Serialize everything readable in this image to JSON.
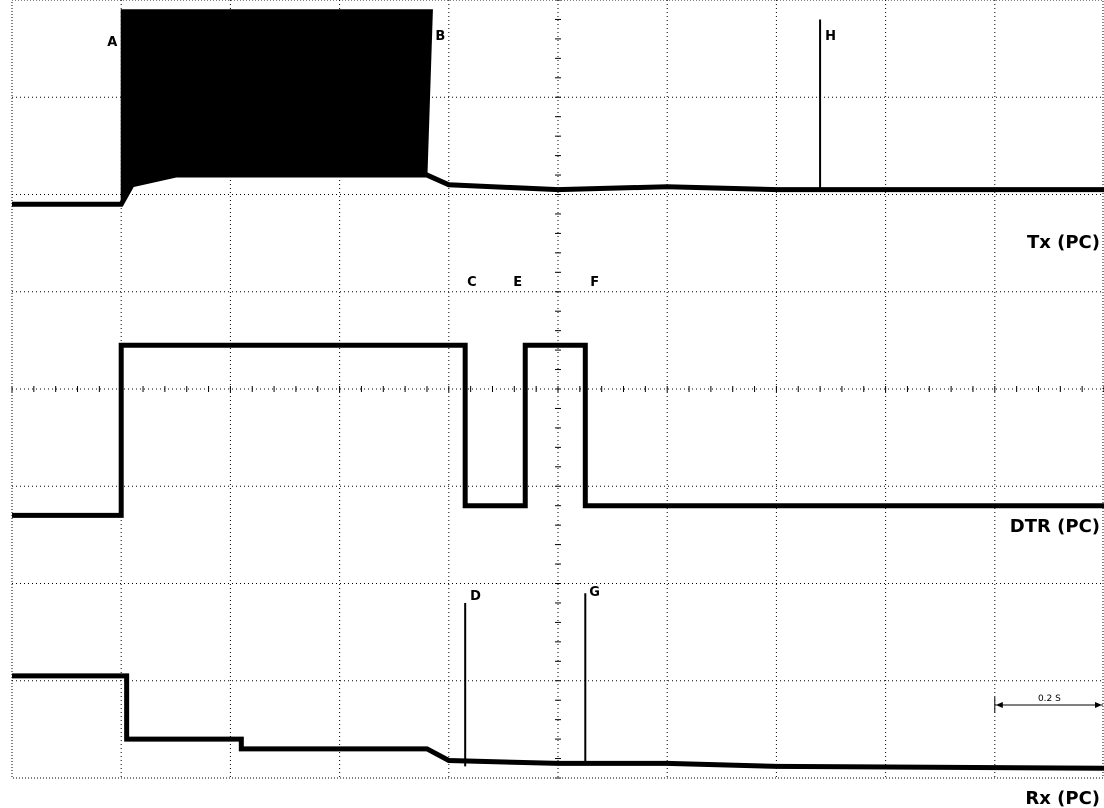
{
  "chart_data": {
    "type": "line",
    "xlim": [
      0,
      2.0
    ],
    "ylim": [
      0,
      8
    ],
    "grid": true,
    "time_scale_label": "0.2 S",
    "time_scale_value": 0.2,
    "series": [
      {
        "name": "Tx (PC)",
        "points": [
          [
            0,
            5.9
          ],
          [
            0.2,
            5.9
          ],
          [
            0.22,
            6.1
          ],
          [
            0.3,
            6.2
          ],
          [
            0.6,
            6.2
          ],
          [
            0.76,
            6.2
          ],
          [
            0.8,
            6.1
          ],
          [
            1.0,
            6.05
          ],
          [
            1.2,
            6.08
          ],
          [
            1.4,
            6.05
          ],
          [
            2.0,
            6.05
          ]
        ],
        "burst": [
          0.2,
          0.77,
          7.9
        ]
      },
      {
        "name": "DTR (PC)",
        "points": [
          [
            0,
            2.7
          ],
          [
            0.2,
            2.7
          ],
          [
            0.2,
            4.45
          ],
          [
            0.83,
            4.45
          ],
          [
            0.83,
            2.8
          ],
          [
            0.94,
            2.8
          ],
          [
            0.94,
            4.45
          ],
          [
            1.05,
            4.45
          ],
          [
            1.05,
            2.8
          ],
          [
            2.0,
            2.8
          ]
        ]
      },
      {
        "name": "Rx (PC)",
        "points": [
          [
            0,
            1.05
          ],
          [
            0.21,
            1.05
          ],
          [
            0.21,
            0.4
          ],
          [
            0.42,
            0.4
          ],
          [
            0.42,
            0.3
          ],
          [
            0.76,
            0.3
          ],
          [
            0.8,
            0.18
          ],
          [
            1.0,
            0.15
          ],
          [
            1.2,
            0.15
          ],
          [
            1.4,
            0.12
          ],
          [
            2.0,
            0.1
          ]
        ]
      }
    ],
    "annotations": [
      {
        "label": "A",
        "x": 0.2
      },
      {
        "label": "B",
        "x": 0.77
      },
      {
        "label": "C",
        "x": 0.83
      },
      {
        "label": "D",
        "x": 0.83
      },
      {
        "label": "E",
        "x": 0.94
      },
      {
        "label": "F",
        "x": 1.05
      },
      {
        "label": "G",
        "x": 1.05
      },
      {
        "label": "H",
        "x": 1.48
      }
    ]
  }
}
